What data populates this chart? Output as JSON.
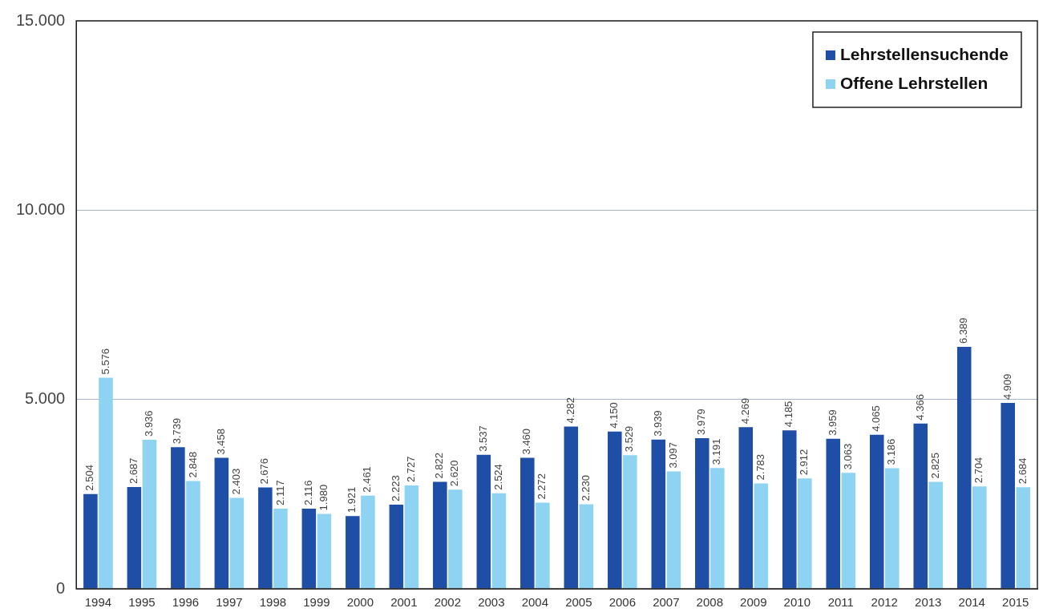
{
  "chart_data": {
    "type": "bar",
    "categories": [
      "1994",
      "1995",
      "1996",
      "1997",
      "1998",
      "1999",
      "2000",
      "2001",
      "2002",
      "2003",
      "2004",
      "2005",
      "2006",
      "2007",
      "2008",
      "2009",
      "2010",
      "2011",
      "2012",
      "2013",
      "2014",
      "2015"
    ],
    "series": [
      {
        "name": "Lehrstellensuchende",
        "color": "#1f4ea6",
        "values": [
          2504,
          2687,
          3739,
          3458,
          2676,
          2116,
          1921,
          2223,
          2822,
          3537,
          3460,
          4282,
          4150,
          3939,
          3979,
          4269,
          4185,
          3959,
          4065,
          4366,
          6389,
          4909
        ],
        "value_labels": [
          "2.504",
          "2.687",
          "3.739",
          "3.458",
          "2.676",
          "2.116",
          "1.921",
          "2.223",
          "2.822",
          "3.537",
          "3.460",
          "4.282",
          "4.150",
          "3.939",
          "3.979",
          "4.269",
          "4.185",
          "3.959",
          "4.065",
          "4.366",
          "6.389",
          "4.909"
        ]
      },
      {
        "name": "Offene Lehrstellen",
        "color": "#8fd3f2",
        "values": [
          5576,
          3936,
          2848,
          2403,
          2117,
          1980,
          2461,
          2727,
          2620,
          2524,
          2272,
          2230,
          3529,
          3097,
          3191,
          2783,
          2912,
          3063,
          3186,
          2825,
          2704,
          2684
        ],
        "value_labels": [
          "5.576",
          "3.936",
          "2.848",
          "2.403",
          "2.117",
          "1.980",
          "2.461",
          "2.727",
          "2.620",
          "2.524",
          "2.272",
          "2.230",
          "3.529",
          "3.097",
          "3.191",
          "2.783",
          "2.912",
          "3.063",
          "3.186",
          "2.825",
          "2.704",
          "2.684"
        ]
      }
    ],
    "ylim": [
      0,
      15000
    ],
    "yticks": [
      0,
      {
        "value": 5000,
        "label": "5.000"
      },
      {
        "value": 10000,
        "label": "10.000"
      },
      {
        "value": 15000,
        "label": "15.000"
      }
    ],
    "grid": "y",
    "legend": "top right"
  }
}
